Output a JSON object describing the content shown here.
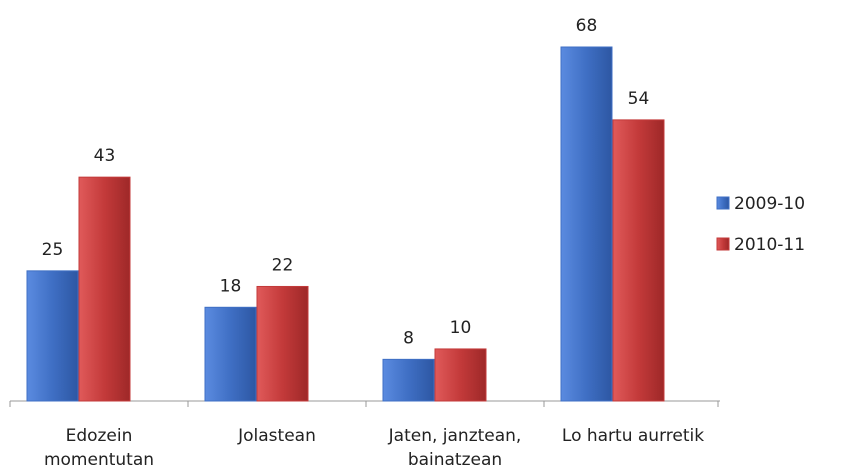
{
  "chart_data": {
    "type": "bar",
    "categories": [
      "Edozein\nmomentutan",
      "Jolastean",
      "Jaten, janztean,\nbainatzean",
      "Lo hartu aurretik"
    ],
    "series": [
      {
        "name": "2009-10",
        "color": "#3f6fc4",
        "values": [
          25,
          18,
          8,
          68
        ]
      },
      {
        "name": "2010-11",
        "color": "#c33a3a",
        "values": [
          43,
          22,
          10,
          54
        ]
      }
    ],
    "legend": "right"
  }
}
